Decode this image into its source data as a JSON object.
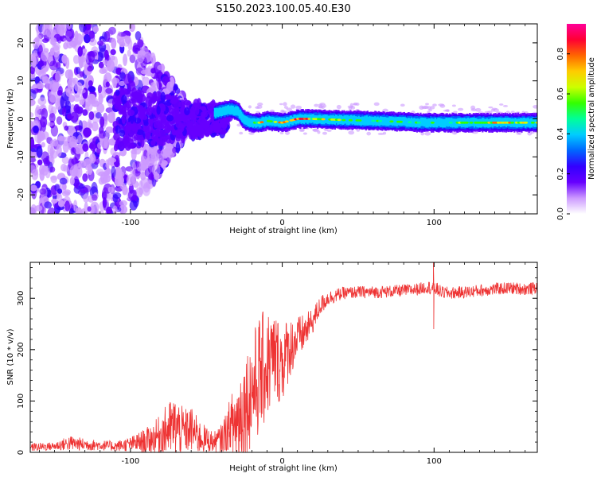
{
  "figure_title": "S150.2023.100.05.40.E30",
  "chart_data": [
    {
      "type": "heatmap",
      "xlabel": "Height of straight line (km)",
      "ylabel": "Frequency (Hz)",
      "xlim": [
        -166,
        168
      ],
      "ylim": [
        -25,
        25
      ],
      "x_ticks": [
        -100,
        0,
        100
      ],
      "y_ticks": [
        -20,
        -10,
        0,
        10,
        20
      ],
      "x_tick_labels": [
        "-100",
        "0",
        "100"
      ],
      "y_tick_labels": [
        "-20",
        "-10",
        "0",
        "10",
        "20"
      ],
      "colorbar": {
        "label": "Normalized spectral amplitude",
        "range": [
          0,
          0.95
        ],
        "ticks": [
          0.0,
          0.2,
          0.4,
          0.6,
          0.8
        ],
        "tick_labels": [
          "0.0",
          "0.2",
          "0.4",
          "0.6",
          "0.8"
        ],
        "colormap": [
          "#ffffff",
          "#cc99ff",
          "#6600ff",
          "#3300ff",
          "#0066ff",
          "#00ccff",
          "#00ff99",
          "#33ff00",
          "#ccff00",
          "#ffcc00",
          "#ff6600",
          "#ff0033",
          "#ff0099"
        ]
      },
      "ridge": {
        "x": [
          -45,
          -40,
          -35,
          -30,
          -25,
          -20,
          -15,
          -10,
          -5,
          0,
          5,
          10,
          20,
          40,
          60,
          80,
          90,
          100,
          120,
          140,
          160,
          168
        ],
        "y": [
          1.5,
          2.0,
          2.5,
          2.0,
          -0.5,
          -1.0,
          -1.0,
          -0.5,
          -0.8,
          -1.0,
          -0.5,
          0.0,
          0.0,
          -0.3,
          -0.5,
          -0.8,
          -1.0,
          -1.0,
          -1.0,
          -1.0,
          -1.0,
          -1.0
        ],
        "amplitude": [
          0.3,
          0.35,
          0.4,
          0.35,
          0.25,
          0.35,
          0.8,
          0.45,
          0.55,
          0.85,
          0.5,
          0.9,
          0.6,
          0.55,
          0.45,
          0.5,
          0.45,
          0.45,
          0.55,
          0.7,
          0.6,
          0.55
        ]
      }
    },
    {
      "type": "line",
      "xlabel": "Height of straight line (km)",
      "ylabel": "SNR (10 * v/v)",
      "xlim": [
        -166,
        168
      ],
      "ylim": [
        0,
        370
      ],
      "x_ticks": [
        -100,
        0,
        100
      ],
      "y_ticks": [
        0,
        100,
        200,
        300
      ],
      "x_tick_labels": [
        "-100",
        "0",
        "100"
      ],
      "y_tick_labels": [
        "0",
        "100",
        "200",
        "300"
      ],
      "series": [
        {
          "color": "#ee3333",
          "x": [
            -166,
            -150,
            -140,
            -130,
            -120,
            -110,
            -100,
            -90,
            -85,
            -80,
            -75,
            -70,
            -65,
            -60,
            -55,
            -50,
            -45,
            -40,
            -35,
            -30,
            -25,
            -20,
            -15,
            -10,
            -5,
            0,
            5,
            10,
            15,
            20,
            25,
            30,
            40,
            50,
            60,
            70,
            80,
            90,
            95,
            100,
            105,
            110,
            120,
            130,
            140,
            150,
            160,
            168
          ],
          "y": [
            10,
            12,
            18,
            15,
            14,
            12,
            16,
            22,
            28,
            35,
            45,
            50,
            40,
            45,
            30,
            25,
            20,
            25,
            40,
            60,
            90,
            120,
            150,
            170,
            185,
            175,
            205,
            220,
            235,
            255,
            285,
            300,
            310,
            312,
            312,
            313,
            315,
            318,
            322,
            320,
            312,
            310,
            312,
            315,
            318,
            320,
            318,
            320
          ],
          "noise_amplitude": [
            8,
            8,
            15,
            12,
            10,
            10,
            14,
            25,
            30,
            40,
            55,
            60,
            45,
            45,
            35,
            25,
            20,
            30,
            60,
            90,
            100,
            110,
            120,
            110,
            90,
            80,
            60,
            45,
            35,
            25,
            20,
            15,
            12,
            12,
            12,
            12,
            12,
            12,
            12,
            15,
            12,
            12,
            12,
            12,
            12,
            12,
            12,
            12
          ]
        }
      ],
      "annotations": [
        {
          "x": 100,
          "y": 370,
          "note": "spike"
        },
        {
          "x": 100,
          "y": 240,
          "note": "dip"
        }
      ]
    }
  ]
}
